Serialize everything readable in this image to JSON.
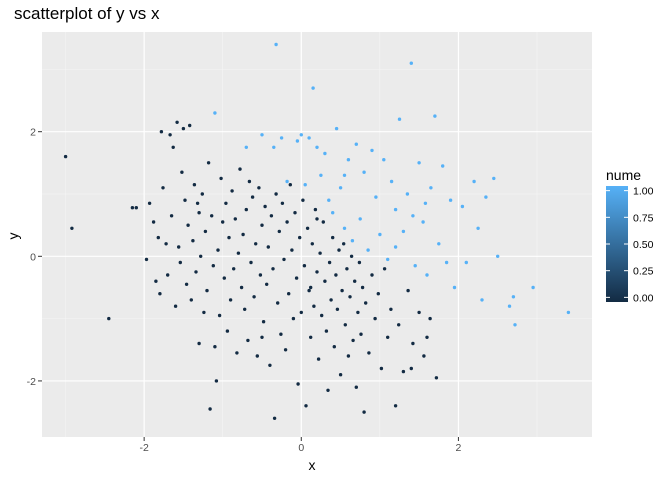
{
  "chart_data": {
    "type": "scatter",
    "title": "scatterplot of y vs x",
    "xlabel": "x",
    "ylabel": "y",
    "xlim": [
      -3.3,
      3.7
    ],
    "ylim": [
      -2.9,
      3.6
    ],
    "x_ticks": [
      -2,
      0,
      2
    ],
    "y_ticks": [
      -2,
      0,
      2
    ],
    "x_tick_labels": [
      "-2",
      "0",
      "2"
    ],
    "y_tick_labels": [
      "-2",
      "0",
      "2"
    ],
    "grid": true,
    "panel_background": "#ebebeb",
    "legend": {
      "title": "nume",
      "position": "right",
      "range": [
        0,
        1
      ],
      "ticks": [
        1.0,
        0.75,
        0.5,
        0.25,
        0.0
      ],
      "tick_labels": [
        "1.00",
        "0.75",
        "0.50",
        "0.25",
        "0.00"
      ],
      "color_low": "#132b43",
      "color_high": "#56b1f7"
    },
    "points": [
      [
        -3.0,
        1.6,
        0
      ],
      [
        -2.92,
        0.45,
        0
      ],
      [
        -2.45,
        -1.0,
        0
      ],
      [
        -2.15,
        0.78,
        0
      ],
      [
        -2.1,
        0.78,
        0
      ],
      [
        -1.97,
        -0.05,
        0
      ],
      [
        -1.93,
        0.85,
        0
      ],
      [
        -1.88,
        0.55,
        0
      ],
      [
        -1.85,
        -0.4,
        0
      ],
      [
        -1.82,
        0.3,
        0
      ],
      [
        -1.8,
        -0.6,
        0
      ],
      [
        -1.78,
        2.0,
        0
      ],
      [
        -1.76,
        1.1,
        0
      ],
      [
        -1.72,
        0.2,
        0
      ],
      [
        -1.7,
        -0.3,
        0
      ],
      [
        -1.67,
        1.95,
        0
      ],
      [
        -1.65,
        0.65,
        0
      ],
      [
        -1.63,
        1.75,
        0
      ],
      [
        -1.6,
        -0.8,
        0
      ],
      [
        -1.58,
        2.15,
        0
      ],
      [
        -1.56,
        0.15,
        0
      ],
      [
        -1.54,
        -0.1,
        0
      ],
      [
        -1.52,
        1.35,
        0
      ],
      [
        -1.5,
        2.05,
        0
      ],
      [
        -1.48,
        0.9,
        0
      ],
      [
        -1.46,
        -0.45,
        0
      ],
      [
        -1.44,
        0.5,
        0
      ],
      [
        -1.42,
        2.1,
        0
      ],
      [
        -1.4,
        -0.7,
        0
      ],
      [
        -1.38,
        0.25,
        0
      ],
      [
        -1.36,
        1.15,
        0
      ],
      [
        -1.34,
        -0.25,
        0
      ],
      [
        -1.32,
        0.85,
        0
      ],
      [
        -1.3,
        -1.4,
        0
      ],
      [
        -1.28,
        0.0,
        0
      ],
      [
        -1.26,
        1.0,
        0
      ],
      [
        -1.24,
        -0.9,
        0
      ],
      [
        -1.22,
        0.4,
        0
      ],
      [
        -1.2,
        -0.55,
        0
      ],
      [
        -1.18,
        1.5,
        0
      ],
      [
        -1.16,
        -2.45,
        0
      ],
      [
        -1.14,
        0.65,
        0
      ],
      [
        -1.12,
        -0.15,
        0
      ],
      [
        -1.1,
        -1.45,
        0
      ],
      [
        -1.08,
        -2.0,
        0
      ],
      [
        -1.06,
        0.1,
        0
      ],
      [
        -1.04,
        -0.95,
        0
      ],
      [
        -1.02,
        1.25,
        0
      ],
      [
        -1.0,
        0.55,
        0
      ],
      [
        -0.98,
        -0.35,
        0
      ],
      [
        -0.96,
        0.85,
        0
      ],
      [
        -0.94,
        -1.2,
        0
      ],
      [
        -0.92,
        0.3,
        0
      ],
      [
        -0.9,
        -0.7,
        0
      ],
      [
        -0.88,
        1.05,
        0
      ],
      [
        -0.86,
        -0.2,
        0
      ],
      [
        -0.84,
        0.6,
        0
      ],
      [
        -0.82,
        -1.55,
        0
      ],
      [
        -0.8,
        0.05,
        0
      ],
      [
        -0.78,
        1.4,
        0
      ],
      [
        -0.76,
        -0.5,
        0
      ],
      [
        -0.74,
        0.35,
        0
      ],
      [
        -0.72,
        -0.85,
        0
      ],
      [
        -0.7,
        0.75,
        0
      ],
      [
        -0.68,
        -1.35,
        0
      ],
      [
        -0.66,
        1.2,
        0
      ],
      [
        -0.64,
        -0.1,
        0
      ],
      [
        -0.62,
        0.95,
        0
      ],
      [
        -0.6,
        -0.65,
        0
      ],
      [
        -0.58,
        0.2,
        0
      ],
      [
        -0.56,
        -1.6,
        0
      ],
      [
        -0.54,
        1.1,
        0
      ],
      [
        -0.52,
        -0.3,
        0
      ],
      [
        -0.5,
        0.5,
        0
      ],
      [
        -0.48,
        -1.05,
        0
      ],
      [
        -0.46,
        0.8,
        0
      ],
      [
        -0.44,
        -0.45,
        0
      ],
      [
        -0.42,
        0.15,
        0
      ],
      [
        -0.4,
        -1.75,
        0
      ],
      [
        -0.38,
        0.65,
        0
      ],
      [
        -0.36,
        -0.2,
        0
      ],
      [
        -0.34,
        -2.6,
        0
      ],
      [
        -0.32,
        1.0,
        0
      ],
      [
        -0.3,
        -0.75,
        0
      ],
      [
        -0.28,
        0.4,
        0
      ],
      [
        -0.26,
        -1.25,
        0
      ],
      [
        -0.24,
        0.85,
        0
      ],
      [
        -0.22,
        -0.05,
        0
      ],
      [
        -0.2,
        -1.5,
        0
      ],
      [
        -0.18,
        0.55,
        0
      ],
      [
        -0.16,
        -0.6,
        0
      ],
      [
        -0.14,
        1.15,
        0
      ],
      [
        -0.12,
        0.1,
        0
      ],
      [
        -0.1,
        -1.0,
        0
      ],
      [
        -0.08,
        0.7,
        0
      ],
      [
        -0.06,
        -0.35,
        0
      ],
      [
        -0.04,
        -2.05,
        0
      ],
      [
        -0.02,
        0.3,
        0
      ],
      [
        0.0,
        -0.9,
        0
      ],
      [
        0.02,
        0.9,
        0
      ],
      [
        0.04,
        -0.15,
        0
      ],
      [
        0.06,
        -2.4,
        0
      ],
      [
        0.08,
        0.45,
        0
      ],
      [
        0.1,
        -0.55,
        0
      ],
      [
        0.12,
        -1.3,
        0
      ],
      [
        0.14,
        0.2,
        0
      ],
      [
        0.16,
        -0.8,
        0
      ],
      [
        0.18,
        0.75,
        0
      ],
      [
        0.2,
        -0.25,
        0
      ],
      [
        0.22,
        -1.65,
        0
      ],
      [
        0.24,
        0.05,
        0
      ],
      [
        0.26,
        -0.95,
        0
      ],
      [
        0.28,
        0.55,
        0
      ],
      [
        0.3,
        -0.4,
        0
      ],
      [
        0.32,
        -1.2,
        0
      ],
      [
        0.34,
        -2.15,
        0
      ],
      [
        0.36,
        -0.1,
        0
      ],
      [
        0.38,
        -0.7,
        0
      ],
      [
        0.4,
        0.3,
        0
      ],
      [
        0.42,
        -1.45,
        0
      ],
      [
        0.44,
        -0.3,
        0
      ],
      [
        0.46,
        -0.85,
        0
      ],
      [
        0.48,
        0.1,
        0
      ],
      [
        0.5,
        -1.9,
        0
      ],
      [
        0.52,
        -0.55,
        0
      ],
      [
        0.54,
        0.2,
        0
      ],
      [
        0.56,
        -1.1,
        0
      ],
      [
        0.58,
        -0.2,
        0
      ],
      [
        0.6,
        -1.6,
        0
      ],
      [
        0.62,
        -0.65,
        0
      ],
      [
        0.64,
        0.0,
        0
      ],
      [
        0.66,
        -1.35,
        0
      ],
      [
        0.68,
        -0.4,
        0
      ],
      [
        0.7,
        -2.1,
        0
      ],
      [
        0.72,
        -0.9,
        0
      ],
      [
        0.74,
        -0.1,
        0
      ],
      [
        0.76,
        -1.25,
        0
      ],
      [
        0.78,
        -0.5,
        0
      ],
      [
        0.8,
        -2.5,
        0
      ],
      [
        0.82,
        -0.75,
        0
      ],
      [
        0.86,
        -1.55,
        0
      ],
      [
        0.9,
        -0.3,
        0
      ],
      [
        0.94,
        -1.0,
        0
      ],
      [
        0.98,
        -0.6,
        0
      ],
      [
        1.02,
        -1.8,
        0
      ],
      [
        1.06,
        -0.2,
        0
      ],
      [
        1.1,
        -1.3,
        0
      ],
      [
        1.14,
        -0.85,
        0
      ],
      [
        1.2,
        -2.4,
        0
      ],
      [
        1.24,
        -1.1,
        0
      ],
      [
        1.3,
        -1.85,
        0
      ],
      [
        1.36,
        -0.55,
        0
      ],
      [
        1.42,
        -1.4,
        0
      ],
      [
        1.5,
        -0.9,
        0
      ],
      [
        1.56,
        -1.6,
        0
      ],
      [
        1.6,
        -1.3,
        0
      ],
      [
        1.64,
        -1.0,
        0
      ],
      [
        1.72,
        -1.95,
        0
      ],
      [
        1.4,
        -1.8,
        0
      ],
      [
        0.12,
        -0.5,
        0
      ],
      [
        -1.3,
        0.7,
        0
      ],
      [
        -0.5,
        -1.3,
        0
      ],
      [
        0.2,
        0.6,
        0
      ],
      [
        -1.1,
        2.3,
        1
      ],
      [
        -0.7,
        1.75,
        1
      ],
      [
        -0.5,
        1.95,
        1
      ],
      [
        -0.35,
        1.75,
        1
      ],
      [
        -0.32,
        3.4,
        1
      ],
      [
        -0.25,
        1.9,
        1
      ],
      [
        -0.18,
        1.2,
        1
      ],
      [
        -0.05,
        1.85,
        1
      ],
      [
        0.0,
        1.95,
        1
      ],
      [
        0.05,
        1.15,
        1
      ],
      [
        0.1,
        1.9,
        1
      ],
      [
        0.15,
        2.7,
        1
      ],
      [
        0.2,
        1.75,
        1
      ],
      [
        0.25,
        1.3,
        1
      ],
      [
        0.3,
        1.65,
        1
      ],
      [
        0.35,
        0.9,
        1
      ],
      [
        0.4,
        0.7,
        1
      ],
      [
        0.45,
        2.05,
        1
      ],
      [
        0.5,
        1.1,
        1
      ],
      [
        0.55,
        0.45,
        1
      ],
      [
        0.6,
        1.55,
        1
      ],
      [
        0.65,
        0.25,
        1
      ],
      [
        0.7,
        1.8,
        1
      ],
      [
        0.75,
        0.6,
        1
      ],
      [
        0.8,
        1.35,
        1
      ],
      [
        0.85,
        0.1,
        1
      ],
      [
        0.9,
        1.7,
        1
      ],
      [
        0.95,
        0.95,
        1
      ],
      [
        1.0,
        0.35,
        1
      ],
      [
        1.05,
        1.55,
        1
      ],
      [
        1.1,
        -0.05,
        1
      ],
      [
        1.15,
        1.2,
        1
      ],
      [
        1.2,
        0.75,
        1
      ],
      [
        1.25,
        2.2,
        1
      ],
      [
        1.3,
        0.4,
        1
      ],
      [
        1.35,
        1.0,
        1
      ],
      [
        1.4,
        3.1,
        1
      ],
      [
        1.45,
        -0.15,
        1
      ],
      [
        1.5,
        1.5,
        1
      ],
      [
        1.55,
        0.55,
        1
      ],
      [
        1.6,
        -0.3,
        1
      ],
      [
        1.65,
        1.1,
        1
      ],
      [
        1.7,
        2.25,
        1
      ],
      [
        1.75,
        0.2,
        1
      ],
      [
        1.8,
        1.45,
        1
      ],
      [
        1.85,
        -0.1,
        1
      ],
      [
        1.9,
        0.9,
        1
      ],
      [
        1.95,
        -0.5,
        1
      ],
      [
        2.05,
        0.8,
        1
      ],
      [
        2.1,
        -0.1,
        1
      ],
      [
        2.2,
        1.2,
        1
      ],
      [
        2.25,
        0.45,
        1
      ],
      [
        2.3,
        -0.7,
        1
      ],
      [
        2.35,
        0.95,
        1
      ],
      [
        2.45,
        1.25,
        1
      ],
      [
        2.5,
        0.0,
        1
      ],
      [
        2.65,
        -0.8,
        1
      ],
      [
        2.7,
        -0.65,
        1
      ],
      [
        2.72,
        -1.1,
        1
      ],
      [
        2.95,
        -0.5,
        1
      ],
      [
        3.4,
        -0.9,
        1
      ],
      [
        1.58,
        0.85,
        1
      ],
      [
        1.42,
        0.65,
        1
      ],
      [
        1.2,
        0.15,
        1
      ],
      [
        0.55,
        1.3,
        1
      ]
    ]
  }
}
